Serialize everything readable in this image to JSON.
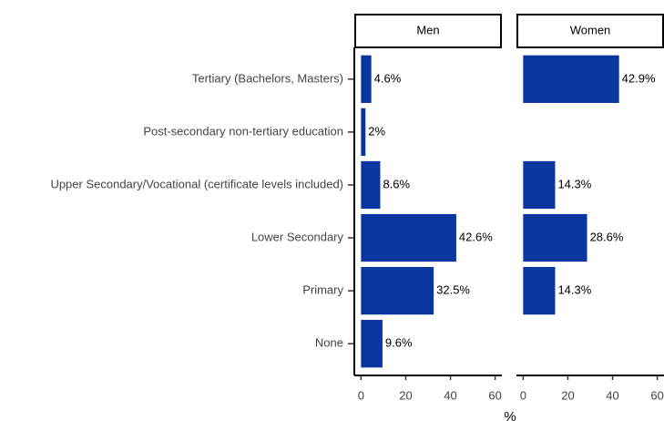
{
  "chart_data": {
    "type": "bar",
    "orientation": "horizontal",
    "categories": [
      "Tertiary (Bachelors, Masters)",
      "Post-secondary non-tertiary education",
      "Upper Secondary/Vocational (certificate levels included)",
      "Lower Secondary",
      "Primary",
      "None"
    ],
    "series": [
      {
        "name": "Men",
        "color": "#0a36a0",
        "values": [
          4.6,
          2,
          8.6,
          42.6,
          32.5,
          9.6
        ],
        "value_labels": [
          "4.6%",
          "2%",
          "8.6%",
          "42.6%",
          "32.5%",
          "9.6%"
        ]
      },
      {
        "name": "Women",
        "color": "#0a36a0",
        "values": [
          42.9,
          null,
          14.3,
          28.6,
          14.3,
          null
        ],
        "value_labels": [
          "42.9%",
          null,
          "14.3%",
          "28.6%",
          "14.3%",
          null
        ]
      }
    ],
    "xlabel": "%",
    "xlim": [
      -3,
      63
    ],
    "xticks": [
      0,
      20,
      40,
      60
    ]
  }
}
